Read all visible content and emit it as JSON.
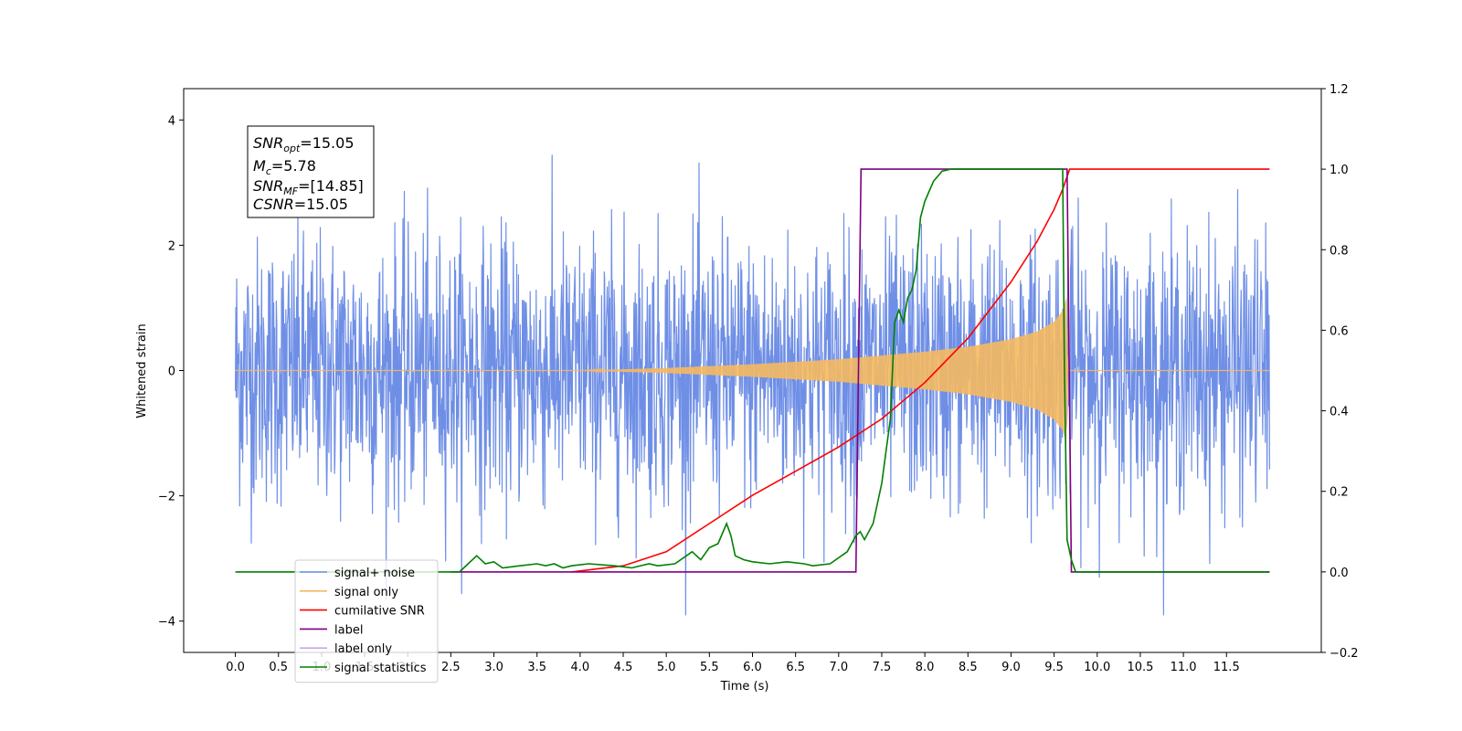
{
  "chart_data": {
    "type": "line",
    "xlabel": "Time (s)",
    "ylabel": "Whitened strain",
    "xlim": [
      -0.6,
      12.6
    ],
    "ylim": [
      -4.5,
      4.5
    ],
    "y2lim": [
      -0.2,
      1.2
    ],
    "x_ticks": [
      "0.0",
      "0.5",
      "1.0",
      "1.5",
      "2.0",
      "2.5",
      "3.0",
      "3.5",
      "4.0",
      "4.5",
      "5.0",
      "5.5",
      "6.0",
      "6.5",
      "7.0",
      "7.5",
      "8.0",
      "8.5",
      "9.0",
      "9.5",
      "10.0",
      "10.5",
      "11.0",
      "11.5"
    ],
    "y_ticks": [
      "4",
      "2",
      "0",
      "−2",
      "−4"
    ],
    "y2_ticks": [
      "1.2",
      "1.0",
      "0.8",
      "0.6",
      "0.4",
      "0.2",
      "0.0",
      "−0.2"
    ],
    "legend_location": "lower-left",
    "info_box": {
      "snr_opt_main": "SNR",
      "snr_opt_sub": "opt",
      "snr_opt_val": "=15.05",
      "mc_main": "M",
      "mc_sub": "c",
      "mc_val": "=5.78",
      "snr_mf_main": "SNR",
      "snr_mf_sub": "MF",
      "snr_mf_val": "=[14.85]",
      "csnr_main": "CSNR",
      "csnr_val": "=15.05"
    },
    "series": [
      {
        "name": "signal+ noise",
        "color": "#6f8fe6",
        "axis": "left",
        "description": "white noise, amplitude roughly ±2 with spikes to ~±4",
        "x_range": [
          0.0,
          12.0
        ]
      },
      {
        "name": "signal only",
        "color": "#f5b961",
        "axis": "left",
        "envelope": {
          "x": [
            0.0,
            4.0,
            5.0,
            6.0,
            7.0,
            8.0,
            8.5,
            9.0,
            9.3,
            9.5,
            9.6,
            9.64,
            9.66,
            12.0
          ],
          "amp": [
            0.0,
            0.0,
            0.04,
            0.1,
            0.18,
            0.3,
            0.38,
            0.5,
            0.62,
            0.78,
            0.95,
            1.15,
            0.0,
            0.0
          ]
        }
      },
      {
        "name": "cumilative SNR",
        "color": "#ff0000",
        "axis": "right",
        "x": [
          3.9,
          4.5,
          5.0,
          5.5,
          6.0,
          6.5,
          7.0,
          7.5,
          8.0,
          8.5,
          9.0,
          9.3,
          9.5,
          9.6,
          9.68,
          9.7,
          12.0
        ],
        "y": [
          0.0,
          0.015,
          0.05,
          0.12,
          0.19,
          0.25,
          0.31,
          0.38,
          0.47,
          0.58,
          0.72,
          0.82,
          0.9,
          0.95,
          1.0,
          1.0,
          1.0
        ]
      },
      {
        "name": "label",
        "color": "#800080",
        "axis": "right",
        "x": [
          2.5,
          7.2,
          7.26,
          9.65,
          9.7,
          12.0
        ],
        "y": [
          0.0,
          0.0,
          1.0,
          1.0,
          0.0,
          0.0
        ]
      },
      {
        "name": "label only",
        "color": "#c9a6e8",
        "axis": "right",
        "x": [],
        "y": []
      },
      {
        "name": "signal statistics",
        "color": "#008000",
        "axis": "right",
        "x": [
          0.0,
          2.6,
          2.7,
          2.8,
          2.9,
          3.0,
          3.1,
          3.3,
          3.5,
          3.6,
          3.7,
          3.8,
          3.9,
          4.1,
          4.4,
          4.6,
          4.8,
          4.9,
          5.1,
          5.3,
          5.4,
          5.5,
          5.6,
          5.7,
          5.75,
          5.8,
          5.9,
          6.0,
          6.2,
          6.4,
          6.6,
          6.7,
          6.9,
          7.1,
          7.2,
          7.25,
          7.3,
          7.4,
          7.5,
          7.6,
          7.65,
          7.7,
          7.75,
          7.8,
          7.85,
          7.9,
          7.95,
          8.0,
          8.1,
          8.2,
          8.3,
          8.5,
          9.0,
          9.5,
          9.6,
          9.62,
          9.65,
          9.7,
          9.75,
          12.0
        ],
        "y": [
          0.0,
          0.0,
          0.02,
          0.04,
          0.02,
          0.025,
          0.01,
          0.015,
          0.02,
          0.015,
          0.02,
          0.01,
          0.015,
          0.02,
          0.015,
          0.01,
          0.02,
          0.015,
          0.02,
          0.05,
          0.03,
          0.06,
          0.07,
          0.12,
          0.09,
          0.04,
          0.03,
          0.025,
          0.02,
          0.025,
          0.02,
          0.015,
          0.02,
          0.05,
          0.09,
          0.1,
          0.08,
          0.12,
          0.22,
          0.38,
          0.62,
          0.65,
          0.62,
          0.68,
          0.7,
          0.75,
          0.88,
          0.92,
          0.97,
          0.995,
          1.0,
          1.0,
          1.0,
          1.0,
          1.0,
          0.5,
          0.08,
          0.03,
          0.0,
          0.0
        ]
      }
    ]
  }
}
